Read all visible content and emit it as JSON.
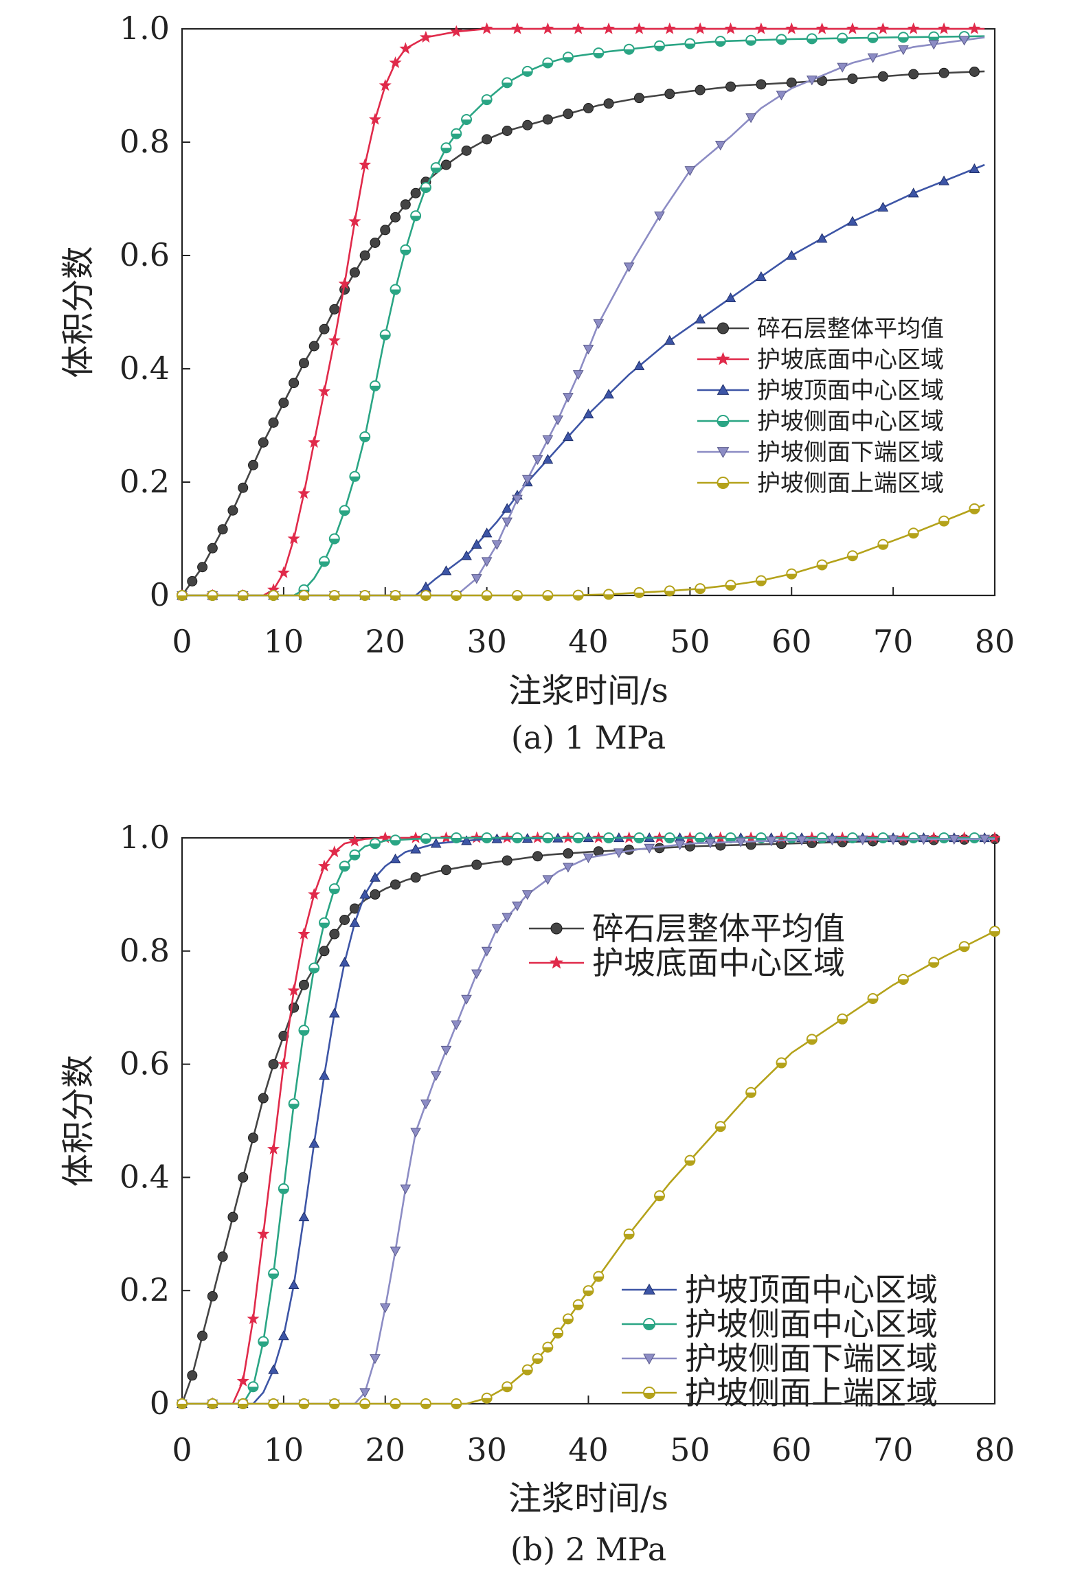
{
  "chart_data": [
    {
      "type": "line",
      "subtitle": "(a) 1 MPa",
      "xlabel": "注浆时间/s",
      "ylabel": "体积分数",
      "xlim": [
        0,
        80
      ],
      "ylim": [
        0,
        1.0
      ],
      "xticks": [
        0,
        10,
        20,
        30,
        40,
        50,
        60,
        70,
        80
      ],
      "yticks": [
        0,
        0.2,
        0.4,
        0.6,
        0.8,
        1.0
      ],
      "ytick_labels": [
        "0",
        "0.2",
        "0.4",
        "0.6",
        "0.8",
        "1.0"
      ],
      "grid": false,
      "legend_position": "center-right",
      "series": [
        {
          "name": "碎石层整体平均值",
          "color": "#444444",
          "marker": "circle",
          "points": [
            [
              0,
              0
            ],
            [
              2,
              0.05
            ],
            [
              5,
              0.15
            ],
            [
              8,
              0.27
            ],
            [
              10,
              0.34
            ],
            [
              12,
              0.41
            ],
            [
              14,
              0.47
            ],
            [
              16,
              0.54
            ],
            [
              18,
              0.6
            ],
            [
              20,
              0.645
            ],
            [
              22,
              0.69
            ],
            [
              24,
              0.73
            ],
            [
              26,
              0.76
            ],
            [
              28,
              0.785
            ],
            [
              30,
              0.805
            ],
            [
              32,
              0.82
            ],
            [
              35,
              0.835
            ],
            [
              38,
              0.85
            ],
            [
              41,
              0.865
            ],
            [
              45,
              0.878
            ],
            [
              50,
              0.89
            ],
            [
              55,
              0.9
            ],
            [
              60,
              0.905
            ],
            [
              66,
              0.912
            ],
            [
              72,
              0.92
            ],
            [
              79,
              0.925
            ]
          ]
        },
        {
          "name": "护坡底面中心区域",
          "color": "#e02a4a",
          "marker": "star",
          "points": [
            [
              0,
              0
            ],
            [
              8,
              0
            ],
            [
              9,
              0.01
            ],
            [
              10,
              0.04
            ],
            [
              11,
              0.1
            ],
            [
              12,
              0.18
            ],
            [
              13,
              0.27
            ],
            [
              14,
              0.36
            ],
            [
              15,
              0.45
            ],
            [
              16,
              0.55
            ],
            [
              17,
              0.66
            ],
            [
              18,
              0.76
            ],
            [
              19,
              0.84
            ],
            [
              20,
              0.9
            ],
            [
              21,
              0.94
            ],
            [
              22,
              0.965
            ],
            [
              24,
              0.985
            ],
            [
              27,
              0.995
            ],
            [
              30,
              1.0
            ],
            [
              40,
              1.0
            ],
            [
              60,
              1.0
            ],
            [
              79,
              1.0
            ]
          ]
        },
        {
          "name": "护坡顶面中心区域",
          "color": "#3d55a6",
          "marker": "triangle-up",
          "points": [
            [
              0,
              0
            ],
            [
              23,
              0
            ],
            [
              25,
              0.03
            ],
            [
              28,
              0.07
            ],
            [
              31,
              0.13
            ],
            [
              34,
              0.2
            ],
            [
              37,
              0.26
            ],
            [
              40,
              0.32
            ],
            [
              44,
              0.39
            ],
            [
              48,
              0.45
            ],
            [
              52,
              0.5
            ],
            [
              56,
              0.55
            ],
            [
              60,
              0.6
            ],
            [
              66,
              0.66
            ],
            [
              72,
              0.71
            ],
            [
              79,
              0.76
            ]
          ]
        },
        {
          "name": "护坡侧面中心区域",
          "color": "#2aa584",
          "marker": "circle-half",
          "points": [
            [
              0,
              0
            ],
            [
              11,
              0
            ],
            [
              12,
              0.01
            ],
            [
              13,
              0.03
            ],
            [
              14,
              0.06
            ],
            [
              15,
              0.1
            ],
            [
              16,
              0.15
            ],
            [
              17,
              0.21
            ],
            [
              18,
              0.28
            ],
            [
              19,
              0.37
            ],
            [
              20,
              0.46
            ],
            [
              21,
              0.54
            ],
            [
              22,
              0.61
            ],
            [
              23,
              0.67
            ],
            [
              24,
              0.72
            ],
            [
              26,
              0.79
            ],
            [
              28,
              0.84
            ],
            [
              30,
              0.875
            ],
            [
              32,
              0.905
            ],
            [
              34,
              0.925
            ],
            [
              36,
              0.94
            ],
            [
              38,
              0.95
            ],
            [
              42,
              0.96
            ],
            [
              47,
              0.97
            ],
            [
              53,
              0.978
            ],
            [
              60,
              0.982
            ],
            [
              70,
              0.985
            ],
            [
              79,
              0.987
            ]
          ]
        },
        {
          "name": "护坡侧面下端区域",
          "color": "#8c8cc4",
          "marker": "triangle-down",
          "points": [
            [
              0,
              0
            ],
            [
              27,
              0
            ],
            [
              29,
              0.03
            ],
            [
              31,
              0.09
            ],
            [
              33,
              0.17
            ],
            [
              35,
              0.24
            ],
            [
              37,
              0.31
            ],
            [
              39,
              0.39
            ],
            [
              41,
              0.48
            ],
            [
              44,
              0.58
            ],
            [
              47,
              0.67
            ],
            [
              50,
              0.75
            ],
            [
              54,
              0.81
            ],
            [
              57,
              0.86
            ],
            [
              60,
              0.895
            ],
            [
              66,
              0.94
            ],
            [
              72,
              0.968
            ],
            [
              79,
              0.985
            ]
          ]
        },
        {
          "name": "护坡侧面上端区域",
          "color": "#b4a21a",
          "marker": "circle-half-gold",
          "points": [
            [
              0,
              0
            ],
            [
              38,
              0
            ],
            [
              42,
              0.002
            ],
            [
              45,
              0.005
            ],
            [
              48,
              0.008
            ],
            [
              51,
              0.012
            ],
            [
              54,
              0.018
            ],
            [
              57,
              0.026
            ],
            [
              60,
              0.038
            ],
            [
              66,
              0.07
            ],
            [
              72,
              0.11
            ],
            [
              79,
              0.16
            ]
          ]
        }
      ]
    },
    {
      "type": "line",
      "subtitle": "(b) 2 MPa",
      "xlabel": "注浆时间/s",
      "ylabel": "体积分数",
      "xlim": [
        0,
        80
      ],
      "ylim": [
        0,
        1.0
      ],
      "xticks": [
        0,
        10,
        20,
        30,
        40,
        50,
        60,
        70,
        80
      ],
      "yticks": [
        0,
        0.2,
        0.4,
        0.6,
        0.8,
        1.0
      ],
      "ytick_labels": [
        "0",
        "0.2",
        "0.4",
        "0.6",
        "0.8",
        "1.0"
      ],
      "grid": false,
      "legend_position": "split: top-center and bottom-right",
      "series": [
        {
          "name": "碎石层整体平均值",
          "color": "#444444",
          "marker": "circle",
          "points": [
            [
              0,
              0
            ],
            [
              1,
              0.05
            ],
            [
              2,
              0.12
            ],
            [
              3,
              0.19
            ],
            [
              4,
              0.26
            ],
            [
              5,
              0.33
            ],
            [
              6,
              0.4
            ],
            [
              7,
              0.47
            ],
            [
              8,
              0.54
            ],
            [
              9,
              0.6
            ],
            [
              10,
              0.65
            ],
            [
              11,
              0.7
            ],
            [
              12,
              0.74
            ],
            [
              13,
              0.77
            ],
            [
              14,
              0.8
            ],
            [
              15,
              0.83
            ],
            [
              16,
              0.855
            ],
            [
              17,
              0.875
            ],
            [
              18,
              0.89
            ],
            [
              20,
              0.91
            ],
            [
              22,
              0.925
            ],
            [
              25,
              0.94
            ],
            [
              28,
              0.95
            ],
            [
              32,
              0.96
            ],
            [
              36,
              0.97
            ],
            [
              40,
              0.975
            ],
            [
              45,
              0.98
            ],
            [
              50,
              0.985
            ],
            [
              60,
              0.99
            ],
            [
              70,
              0.995
            ],
            [
              80,
              0.998
            ]
          ]
        },
        {
          "name": "护坡底面中心区域",
          "color": "#e02a4a",
          "marker": "star",
          "points": [
            [
              0,
              0
            ],
            [
              5,
              0
            ],
            [
              6,
              0.04
            ],
            [
              7,
              0.15
            ],
            [
              8,
              0.3
            ],
            [
              9,
              0.45
            ],
            [
              10,
              0.6
            ],
            [
              11,
              0.73
            ],
            [
              12,
              0.83
            ],
            [
              13,
              0.9
            ],
            [
              14,
              0.95
            ],
            [
              15,
              0.975
            ],
            [
              16,
              0.99
            ],
            [
              18,
              0.998
            ],
            [
              20,
              1.0
            ],
            [
              30,
              1.0
            ],
            [
              50,
              1.0
            ],
            [
              80,
              1.0
            ]
          ]
        },
        {
          "name": "护坡顶面中心区域",
          "color": "#3d55a6",
          "marker": "triangle-up",
          "points": [
            [
              0,
              0
            ],
            [
              7,
              0
            ],
            [
              8,
              0.02
            ],
            [
              9,
              0.06
            ],
            [
              10,
              0.12
            ],
            [
              11,
              0.21
            ],
            [
              12,
              0.33
            ],
            [
              13,
              0.46
            ],
            [
              14,
              0.58
            ],
            [
              15,
              0.69
            ],
            [
              16,
              0.78
            ],
            [
              17,
              0.85
            ],
            [
              18,
              0.9
            ],
            [
              19,
              0.93
            ],
            [
              20,
              0.95
            ],
            [
              22,
              0.975
            ],
            [
              25,
              0.99
            ],
            [
              30,
              0.998
            ],
            [
              40,
              1.0
            ],
            [
              60,
              1.0
            ],
            [
              80,
              1.0
            ]
          ]
        },
        {
          "name": "护坡侧面中心区域",
          "color": "#2aa584",
          "marker": "circle-half",
          "points": [
            [
              0,
              0
            ],
            [
              6,
              0
            ],
            [
              7,
              0.03
            ],
            [
              8,
              0.11
            ],
            [
              9,
              0.23
            ],
            [
              10,
              0.38
            ],
            [
              11,
              0.53
            ],
            [
              12,
              0.66
            ],
            [
              13,
              0.77
            ],
            [
              14,
              0.85
            ],
            [
              15,
              0.91
            ],
            [
              16,
              0.95
            ],
            [
              17,
              0.97
            ],
            [
              18,
              0.985
            ],
            [
              20,
              0.995
            ],
            [
              25,
              1.0
            ],
            [
              40,
              1.0
            ],
            [
              60,
              1.0
            ],
            [
              80,
              1.0
            ]
          ]
        },
        {
          "name": "护坡侧面下端区域",
          "color": "#8c8cc4",
          "marker": "triangle-down",
          "points": [
            [
              0,
              0
            ],
            [
              17,
              0
            ],
            [
              18,
              0.02
            ],
            [
              19,
              0.08
            ],
            [
              20,
              0.17
            ],
            [
              21,
              0.27
            ],
            [
              22,
              0.38
            ],
            [
              23,
              0.48
            ],
            [
              25,
              0.58
            ],
            [
              27,
              0.67
            ],
            [
              29,
              0.76
            ],
            [
              31,
              0.84
            ],
            [
              34,
              0.9
            ],
            [
              37,
              0.94
            ],
            [
              40,
              0.965
            ],
            [
              45,
              0.98
            ],
            [
              50,
              0.99
            ],
            [
              60,
              0.996
            ],
            [
              80,
              0.998
            ]
          ]
        },
        {
          "name": "护坡侧面上端区域",
          "color": "#b4a21a",
          "marker": "circle-half-gold",
          "points": [
            [
              0,
              0
            ],
            [
              28,
              0
            ],
            [
              30,
              0.01
            ],
            [
              32,
              0.03
            ],
            [
              34,
              0.06
            ],
            [
              36,
              0.1
            ],
            [
              38,
              0.15
            ],
            [
              40,
              0.2
            ],
            [
              42,
              0.25
            ],
            [
              44,
              0.3
            ],
            [
              48,
              0.39
            ],
            [
              52,
              0.47
            ],
            [
              56,
              0.55
            ],
            [
              60,
              0.62
            ],
            [
              65,
              0.68
            ],
            [
              70,
              0.74
            ],
            [
              75,
              0.79
            ],
            [
              80,
              0.835
            ]
          ]
        }
      ]
    }
  ]
}
